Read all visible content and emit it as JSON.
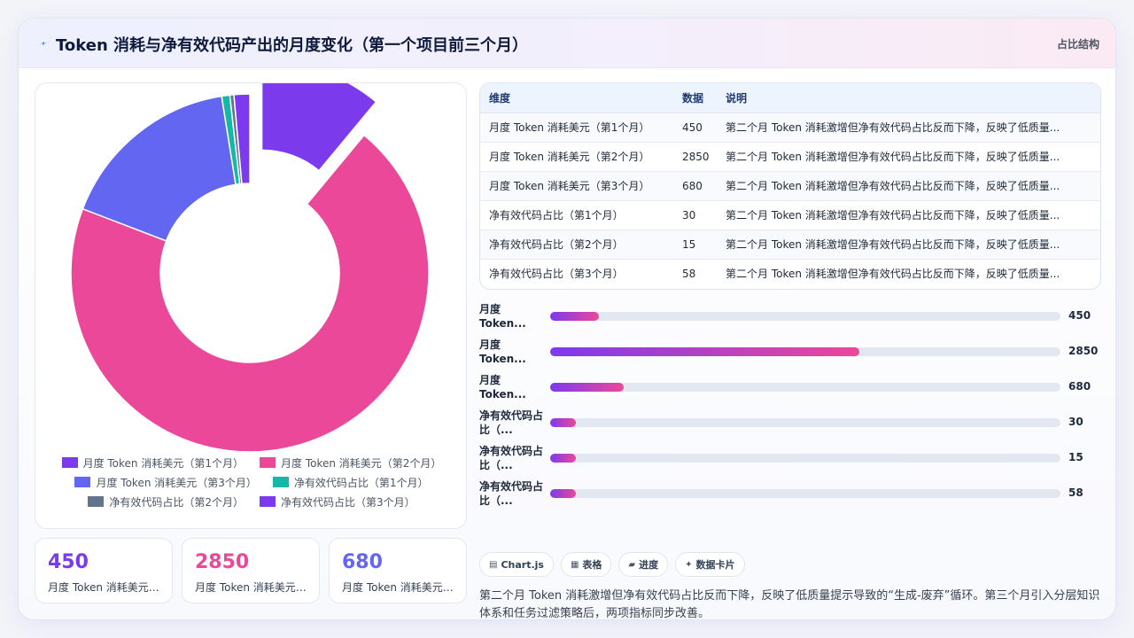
{
  "header": {
    "title": "Token 消耗与净有效代码产出的月度变化（第一个项目前三个月）",
    "right_tag": "占比结构"
  },
  "colors": {
    "purple": "#7c3aed",
    "pink": "#ec4899",
    "indigo": "#6366f1",
    "teal": "#14b8a6",
    "slate": "#64748b"
  },
  "chart_data": {
    "type": "pie",
    "style": "donut",
    "categories": [
      "月度 Token 消耗美元（第1个月）",
      "月度 Token 消耗美元（第2个月）",
      "月度 Token 消耗美元（第3个月）",
      "净有效代码占比（第1个月）",
      "净有效代码占比（第2个月）",
      "净有效代码占比（第3个月）"
    ],
    "values": [
      450,
      2850,
      680,
      30,
      15,
      58
    ],
    "colors": [
      "#7c3aed",
      "#ec4899",
      "#6366f1",
      "#14b8a6",
      "#64748b",
      "#7c3aed"
    ],
    "exploded_index": 0,
    "legend": "bottom"
  },
  "stats": [
    {
      "value": "450",
      "label": "月度 Token 消耗美元（第1个月）",
      "color": "#7c3aed"
    },
    {
      "value": "2850",
      "label": "月度 Token 消耗美元（第2个月）",
      "color": "#ec4899"
    },
    {
      "value": "680",
      "label": "月度 Token 消耗美元（第3个月）",
      "color": "#6366f1"
    }
  ],
  "table": {
    "headers": [
      "维度",
      "数据",
      "说明"
    ],
    "rows": [
      [
        "月度 Token 消耗美元（第1个月）",
        "450",
        "第二个月 Token 消耗激增但净有效代码占比反而下降，反映了低质量..."
      ],
      [
        "月度 Token 消耗美元（第2个月）",
        "2850",
        "第二个月 Token 消耗激增但净有效代码占比反而下降，反映了低质量..."
      ],
      [
        "月度 Token 消耗美元（第3个月）",
        "680",
        "第二个月 Token 消耗激增但净有效代码占比反而下降，反映了低质量..."
      ],
      [
        "净有效代码占比（第1个月）",
        "30",
        "第二个月 Token 消耗激增但净有效代码占比反而下降，反映了低质量..."
      ],
      [
        "净有效代码占比（第2个月）",
        "15",
        "第二个月 Token 消耗激增但净有效代码占比反而下降，反映了低质量..."
      ],
      [
        "净有效代码占比（第3个月）",
        "58",
        "第二个月 Token 消耗激增但净有效代码占比反而下降，反映了低质量..."
      ]
    ]
  },
  "progress": {
    "max": 4700,
    "items": [
      {
        "label": "月度 Token...",
        "value": 450,
        "value_text": "450"
      },
      {
        "label": "月度 Token...",
        "value": 2850,
        "value_text": "2850"
      },
      {
        "label": "月度 Token...",
        "value": 680,
        "value_text": "680"
      },
      {
        "label": "净有效代码占比（...",
        "value": 30,
        "value_text": "30"
      },
      {
        "label": "净有效代码占比（...",
        "value": 15,
        "value_text": "15"
      },
      {
        "label": "净有效代码占比（...",
        "value": 58,
        "value_text": "58"
      }
    ]
  },
  "tags": [
    {
      "icon": "chart-icon",
      "glyph": "▤",
      "label": "Chart.js"
    },
    {
      "icon": "table-icon",
      "glyph": "▦",
      "label": "表格"
    },
    {
      "icon": "progress-icon",
      "glyph": "▰",
      "label": "进度"
    },
    {
      "icon": "sparkle-icon",
      "glyph": "✦",
      "label": "数据卡片"
    }
  ],
  "note": "第二个月 Token 消耗激增但净有效代码占比反而下降，反映了低质量提示导致的“生成-废弃”循环。第三个月引入分层知识体系和任务过滤策略后，两项指标同步改善。"
}
